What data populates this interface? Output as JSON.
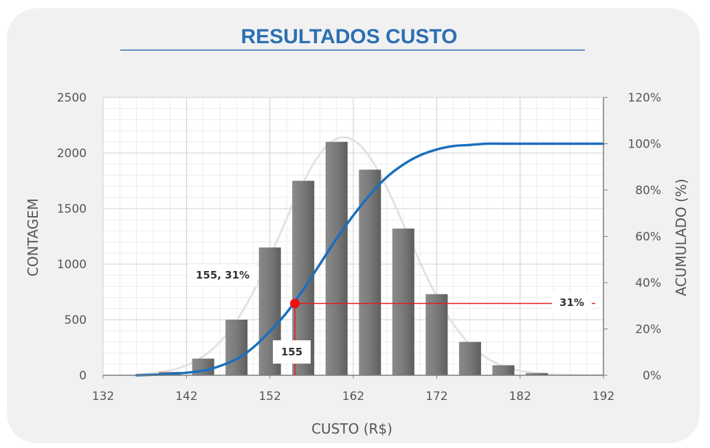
{
  "chart_data": {
    "type": "bar",
    "title": "RESULTADOS CUSTO",
    "xlabel": "CUSTO (R$)",
    "ylabel": "CONTAGEM",
    "y2label": "ACUMULADO (%)",
    "xlim": [
      132,
      192
    ],
    "ylim": [
      0,
      2500
    ],
    "y2lim": [
      0,
      1.2
    ],
    "x_ticks": [
      "132",
      "142",
      "152",
      "162",
      "172",
      "182",
      "192"
    ],
    "y_ticks": [
      "0",
      "500",
      "1000",
      "1500",
      "2000",
      "2500"
    ],
    "y2_ticks": [
      "0%",
      "20%",
      "40%",
      "60%",
      "80%",
      "100%",
      "120%"
    ],
    "grid": true,
    "series": [
      {
        "type": "bar",
        "x": [
          140,
          144,
          148,
          152,
          156,
          160,
          164,
          168,
          172,
          176,
          180,
          184
        ],
        "values": [
          30,
          150,
          500,
          1150,
          1750,
          2100,
          1850,
          1320,
          730,
          300,
          90,
          20
        ]
      },
      {
        "type": "line",
        "x": [
          136,
          140,
          144,
          146,
          148,
          150,
          152,
          154,
          156,
          158,
          160,
          162,
          164,
          166,
          168,
          170,
          172,
          174,
          176,
          178,
          180,
          184,
          188,
          192
        ],
        "values": [
          0.0,
          0.005,
          0.02,
          0.04,
          0.07,
          0.12,
          0.19,
          0.27,
          0.37,
          0.48,
          0.59,
          0.69,
          0.78,
          0.855,
          0.91,
          0.95,
          0.975,
          0.99,
          0.995,
          1.0,
          1.0,
          1.0,
          1.0,
          1.0
        ]
      }
    ],
    "marker": {
      "x": 155,
      "y": 0.31
    },
    "annotations": {
      "point_label": "155, 31%",
      "x_label": "155",
      "y_label": "31%"
    }
  }
}
